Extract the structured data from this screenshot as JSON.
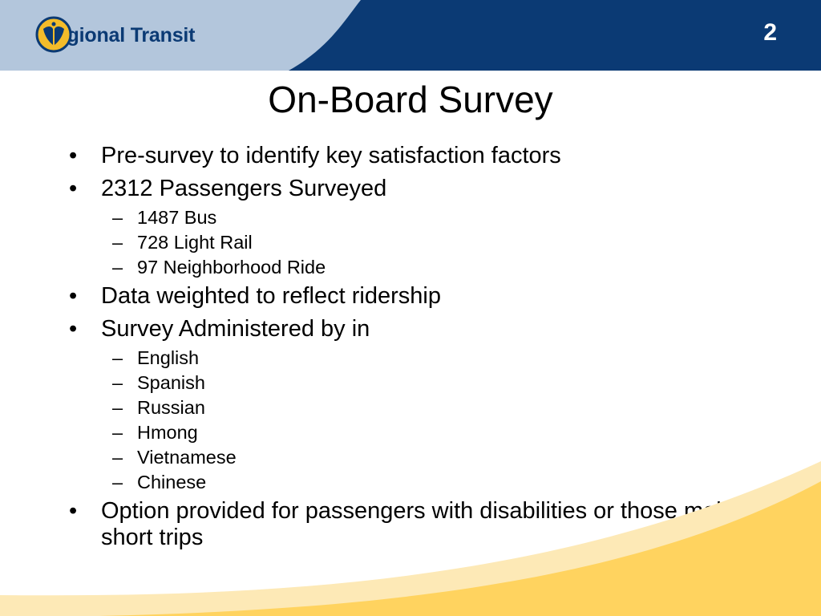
{
  "colors": {
    "header_light": "#b3c6dc",
    "header_dark": "#0b3a74",
    "logo_yellow": "#f4bc2a",
    "footer_yellow": "#ffd35f",
    "footer_light": "#fde9b6"
  },
  "header": {
    "logo_text": "Regional Transit",
    "logo_icon": "regional-transit-logo-icon",
    "page_number": "2"
  },
  "slide": {
    "title": "On-Board Survey",
    "bullet_symbol": "•",
    "dash_symbol": "–",
    "items": [
      {
        "text": "Pre-survey to identify key satisfaction factors",
        "sub": []
      },
      {
        "text": "2312 Passengers Surveyed",
        "sub": [
          "1487 Bus",
          "728 Light Rail",
          "97 Neighborhood Ride"
        ]
      },
      {
        "text": "Data weighted to reflect ridership",
        "sub": []
      },
      {
        "text": "Survey Administered by in",
        "sub": [
          "English",
          "Spanish",
          "Russian",
          "Hmong",
          "Vietnamese",
          "Chinese"
        ]
      },
      {
        "text": "Option provided for passengers with disabilities or those making short trips",
        "sub": []
      }
    ]
  }
}
